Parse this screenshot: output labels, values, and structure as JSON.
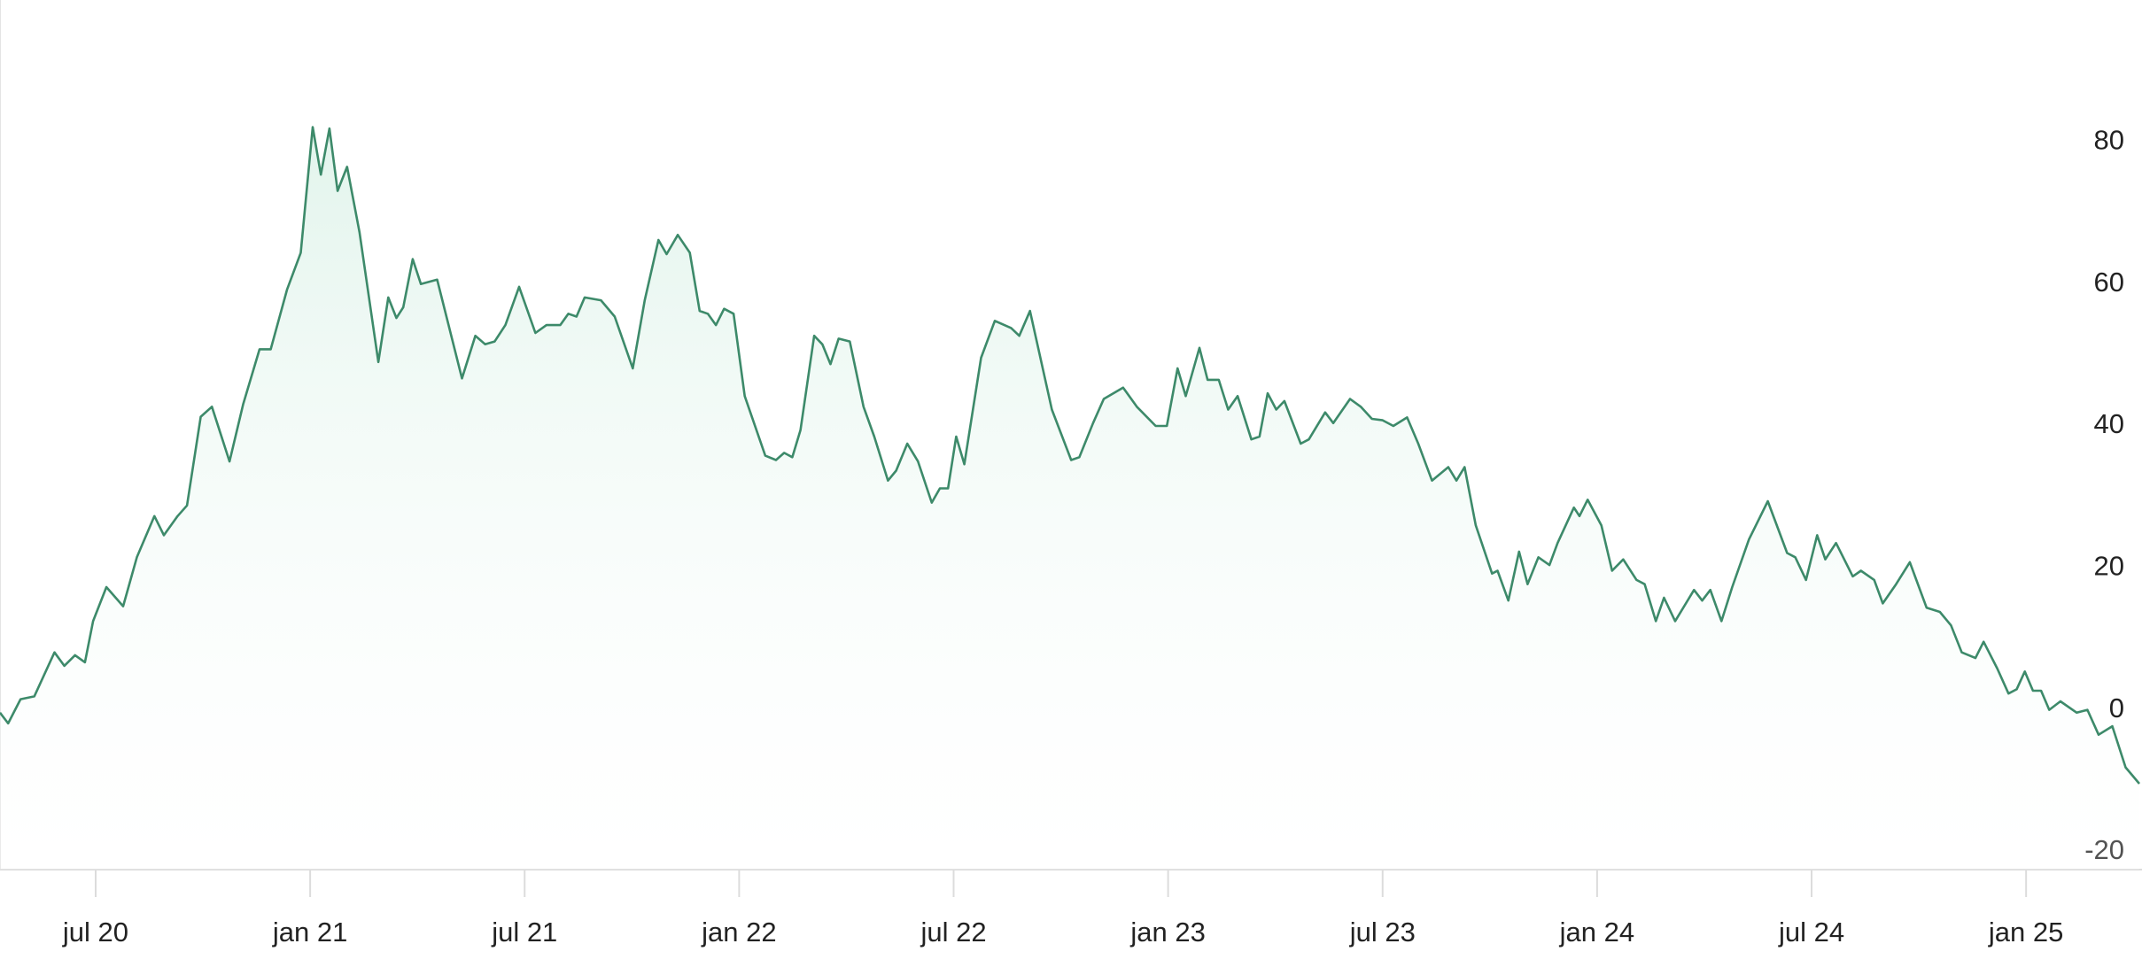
{
  "chart_data": {
    "type": "line",
    "color": "#3d8a6a",
    "area": true,
    "x": [
      2020.277,
      2020.296,
      2020.325,
      2020.357,
      2020.404,
      2020.427,
      2020.452,
      2020.475,
      2020.494,
      2020.525,
      2020.564,
      2020.596,
      2020.637,
      2020.659,
      2020.691,
      2020.713,
      2020.745,
      2020.771,
      2020.812,
      2020.844,
      2020.882,
      2020.908,
      2020.946,
      2020.978,
      2021.006,
      2021.025,
      2021.045,
      2021.064,
      2021.086,
      2021.115,
      2021.159,
      2021.182,
      2021.201,
      2021.217,
      2021.239,
      2021.258,
      2021.296,
      2021.354,
      2021.385,
      2021.408,
      2021.43,
      2021.455,
      2021.487,
      2021.525,
      2021.551,
      2021.583,
      2021.602,
      2021.621,
      2021.64,
      2021.678,
      2021.71,
      2021.752,
      2021.78,
      2021.812,
      2021.831,
      2021.857,
      2021.885,
      2021.908,
      2021.927,
      2021.946,
      2021.965,
      2021.987,
      2022.013,
      2022.061,
      2022.086,
      2022.105,
      2022.124,
      2022.143,
      2022.175,
      2022.194,
      2022.213,
      2022.232,
      2022.258,
      2022.29,
      2022.315,
      2022.347,
      2022.366,
      2022.392,
      2022.417,
      2022.449,
      2022.468,
      2022.487,
      2022.506,
      2022.525,
      2022.545,
      2022.564,
      2022.596,
      2022.634,
      2022.653,
      2022.678,
      2022.729,
      2022.774,
      2022.793,
      2022.825,
      2022.85,
      2022.895,
      2022.927,
      2022.971,
      2022.997,
      2023.022,
      2023.041,
      2023.073,
      2023.092,
      2023.118,
      2023.14,
      2023.162,
      2023.194,
      2023.213,
      2023.232,
      2023.252,
      2023.271,
      2023.309,
      2023.328,
      2023.366,
      2023.385,
      2023.424,
      2023.449,
      2023.475,
      2023.5,
      2023.525,
      2023.557,
      2023.583,
      2023.615,
      2023.653,
      2023.672,
      2023.691,
      2023.717,
      2023.755,
      2023.768,
      2023.793,
      2023.818,
      2023.838,
      2023.863,
      2023.889,
      2023.908,
      2023.946,
      2023.959,
      2023.978,
      2024.01,
      2024.035,
      2024.061,
      2024.092,
      2024.111,
      2024.137,
      2024.156,
      2024.182,
      2024.226,
      2024.245,
      2024.264,
      2024.29,
      2024.315,
      2024.354,
      2024.398,
      2024.443,
      2024.462,
      2024.487,
      2024.513,
      2024.532,
      2024.557,
      2024.596,
      2024.615,
      2024.646,
      2024.666,
      2024.697,
      2024.729,
      2024.768,
      2024.799,
      2024.825,
      2024.85,
      2024.882,
      2024.901,
      2024.933,
      2024.959,
      2024.978,
      2024.997,
      2025.016,
      2025.035,
      2025.054,
      2025.08,
      2025.118,
      2025.143,
      2025.169,
      2025.201,
      2025.232,
      2025.264
    ],
    "values": [
      -0.4,
      -1.9,
      1.5,
      1.9,
      8.1,
      6.2,
      7.7,
      6.7,
      12.5,
      17.3,
      14.6,
      21.5,
      27.3,
      24.6,
      27.3,
      28.8,
      41.3,
      42.7,
      35.0,
      43.1,
      50.8,
      50.8,
      59.2,
      64.4,
      82.1,
      75.4,
      81.9,
      73.1,
      76.5,
      67.3,
      49.0,
      58.1,
      55.2,
      56.7,
      63.5,
      60.0,
      60.6,
      46.7,
      52.7,
      51.5,
      51.9,
      54.2,
      59.6,
      53.1,
      54.2,
      54.2,
      55.8,
      55.4,
      58.1,
      57.7,
      55.4,
      48.1,
      57.7,
      66.2,
      64.2,
      66.9,
      64.4,
      56.2,
      55.8,
      54.2,
      56.5,
      55.8,
      44.2,
      35.8,
      35.2,
      36.2,
      35.6,
      39.4,
      52.7,
      51.5,
      48.7,
      52.3,
      51.9,
      42.7,
      38.5,
      32.3,
      33.7,
      37.5,
      35.0,
      29.2,
      31.2,
      31.2,
      38.5,
      34.6,
      42.3,
      49.6,
      54.8,
      53.8,
      52.7,
      56.2,
      42.3,
      35.2,
      35.6,
      40.4,
      43.8,
      45.4,
      42.7,
      40.0,
      40.0,
      48.1,
      44.2,
      51.0,
      46.5,
      46.5,
      42.3,
      44.2,
      38.1,
      38.5,
      44.6,
      42.3,
      43.5,
      37.5,
      38.1,
      41.9,
      40.4,
      43.8,
      42.7,
      41.0,
      40.8,
      40.0,
      41.2,
      37.5,
      32.3,
      34.2,
      32.3,
      34.2,
      26.0,
      19.2,
      19.6,
      15.4,
      22.3,
      17.7,
      21.5,
      20.4,
      23.5,
      28.5,
      27.3,
      29.6,
      26.0,
      19.6,
      21.2,
      18.3,
      17.7,
      12.5,
      15.8,
      12.5,
      16.9,
      15.4,
      16.9,
      12.5,
      17.3,
      24.0,
      29.4,
      22.1,
      21.5,
      18.3,
      24.6,
      21.2,
      23.5,
      18.8,
      19.6,
      18.3,
      15.0,
      17.7,
      20.8,
      14.4,
      13.8,
      11.9,
      8.1,
      7.3,
      9.6,
      5.8,
      2.3,
      2.9,
      5.4,
      2.7,
      2.7,
      0.0,
      1.2,
      -0.4,
      0.0,
      -3.5,
      -2.3,
      -8.1,
      -10.4
    ],
    "xlim": [
      2020.277,
      2025.264
    ],
    "xticks": [
      {
        "value": 2020.5,
        "label": "jul 20"
      },
      {
        "value": 2021.0,
        "label": "jan 21"
      },
      {
        "value": 2021.5,
        "label": "jul 21"
      },
      {
        "value": 2022.0,
        "label": "jan 22"
      },
      {
        "value": 2022.5,
        "label": "jul 22"
      },
      {
        "value": 2023.0,
        "label": "jan 23"
      },
      {
        "value": 2023.5,
        "label": "jul 23"
      },
      {
        "value": 2024.0,
        "label": "jan 24"
      },
      {
        "value": 2024.5,
        "label": "jul 24"
      },
      {
        "value": 2025.0,
        "label": "jan 25"
      }
    ],
    "ylim": [
      -22.5,
      100
    ],
    "yticks": [
      -20,
      0,
      20,
      40,
      60,
      80
    ]
  }
}
